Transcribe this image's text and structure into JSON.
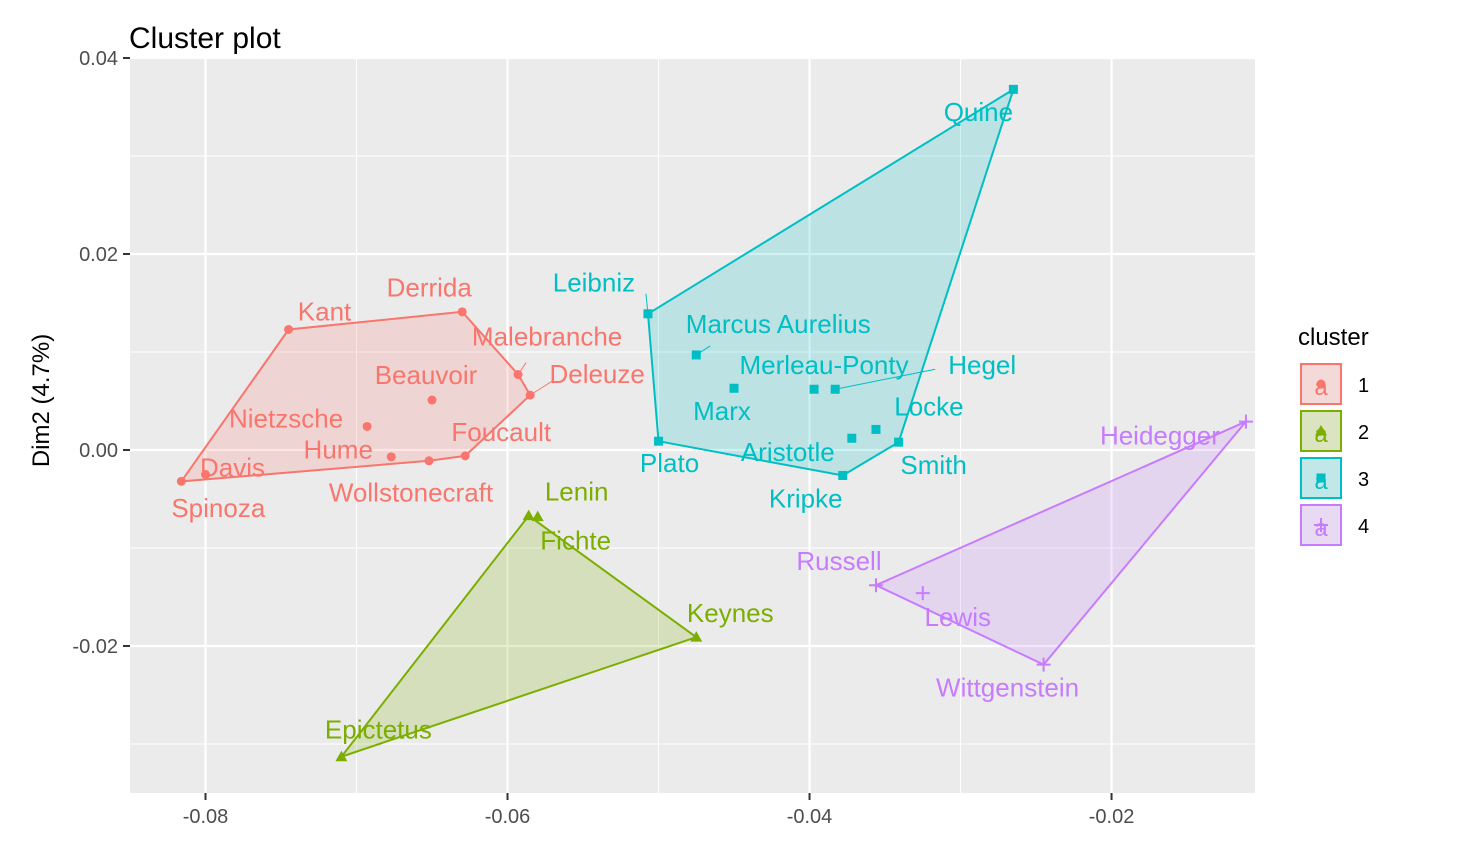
{
  "chart_data": {
    "type": "scatter",
    "title": "Cluster plot",
    "xlabel": "",
    "ylabel": "Dim2 (4.7%)",
    "xlim": [
      -0.085,
      -0.0105
    ],
    "ylim": [
      -0.035,
      0.04
    ],
    "x_ticks": [
      -0.08,
      -0.06,
      -0.04,
      -0.02
    ],
    "x_tick_labels": [
      "-0.08",
      "-0.06",
      "-0.04",
      "-0.02"
    ],
    "y_ticks": [
      -0.02,
      0.0,
      0.02,
      0.04
    ],
    "y_tick_labels": [
      "-0.02",
      "0.00",
      "0.02",
      "0.04"
    ],
    "grid": true,
    "legend": {
      "title": "cluster",
      "position": "right"
    },
    "clusters": [
      {
        "name": "1",
        "color": "#F8766D",
        "marker": "circle",
        "hull": [
          "Spinoza",
          "Kant",
          "Derrida",
          "Malebranche",
          "Deleuze",
          "Foucault",
          "Wollstonecraft"
        ],
        "points": [
          {
            "label": "Kant",
            "x": -0.0745,
            "y": 0.0123
          },
          {
            "label": "Derrida",
            "x": -0.063,
            "y": 0.0141
          },
          {
            "label": "Malebranche",
            "x": -0.0593,
            "y": 0.0077
          },
          {
            "label": "Deleuze",
            "x": -0.0585,
            "y": 0.0056
          },
          {
            "label": "Beauvoir",
            "x": -0.065,
            "y": 0.0051
          },
          {
            "label": "Nietzsche",
            "x": -0.0693,
            "y": 0.0024
          },
          {
            "label": "Foucault",
            "x": -0.0628,
            "y": -0.0006
          },
          {
            "label": "Hume",
            "x": -0.0677,
            "y": -0.0007
          },
          {
            "label": "Wollstonecraft",
            "x": -0.0652,
            "y": -0.0011
          },
          {
            "label": "Davis",
            "x": -0.08,
            "y": -0.0025
          },
          {
            "label": "Spinoza",
            "x": -0.0816,
            "y": -0.0032
          }
        ]
      },
      {
        "name": "2",
        "color": "#7CAE00",
        "marker": "triangle",
        "hull": [
          "Lenin",
          "Keynes",
          "Epictetus"
        ],
        "points": [
          {
            "label": "Lenin",
            "x": -0.0586,
            "y": -0.0067
          },
          {
            "label": "Fichte",
            "x": -0.058,
            "y": -0.0068
          },
          {
            "label": "Keynes",
            "x": -0.0475,
            "y": -0.0191
          },
          {
            "label": "Epictetus",
            "x": -0.071,
            "y": -0.0313
          }
        ]
      },
      {
        "name": "3",
        "color": "#00BFC4",
        "marker": "square",
        "hull": [
          "Leibniz",
          "Quine",
          "Smith",
          "Kripke",
          "Plato"
        ],
        "points": [
          {
            "label": "Quine",
            "x": -0.0265,
            "y": 0.0368
          },
          {
            "label": "Leibniz",
            "x": -0.0507,
            "y": 0.0139
          },
          {
            "label": "Marcus Aurelius",
            "x": -0.0475,
            "y": 0.0097
          },
          {
            "label": "Merleau-Ponty",
            "x": -0.0397,
            "y": 0.0062
          },
          {
            "label": "Hegel",
            "x": -0.0383,
            "y": 0.0062
          },
          {
            "label": "Marx",
            "x": -0.045,
            "y": 0.0063
          },
          {
            "label": "Locke",
            "x": -0.0356,
            "y": 0.0021
          },
          {
            "label": "Aristotle",
            "x": -0.0372,
            "y": 0.0012
          },
          {
            "label": "Smith",
            "x": -0.0341,
            "y": 0.0008
          },
          {
            "label": "Plato",
            "x": -0.05,
            "y": 0.0009
          },
          {
            "label": "Kripke",
            "x": -0.0378,
            "y": -0.0026
          }
        ]
      },
      {
        "name": "4",
        "color": "#C77CFF",
        "marker": "plus",
        "hull": [
          "Heidegger",
          "Russell",
          "Wittgenstein"
        ],
        "points": [
          {
            "label": "Heidegger",
            "x": -0.0111,
            "y": 0.0029
          },
          {
            "label": "Russell",
            "x": -0.0356,
            "y": -0.0138
          },
          {
            "label": "Lewis",
            "x": -0.0325,
            "y": -0.0146
          },
          {
            "label": "Wittgenstein",
            "x": -0.0245,
            "y": -0.0219
          }
        ]
      }
    ]
  }
}
